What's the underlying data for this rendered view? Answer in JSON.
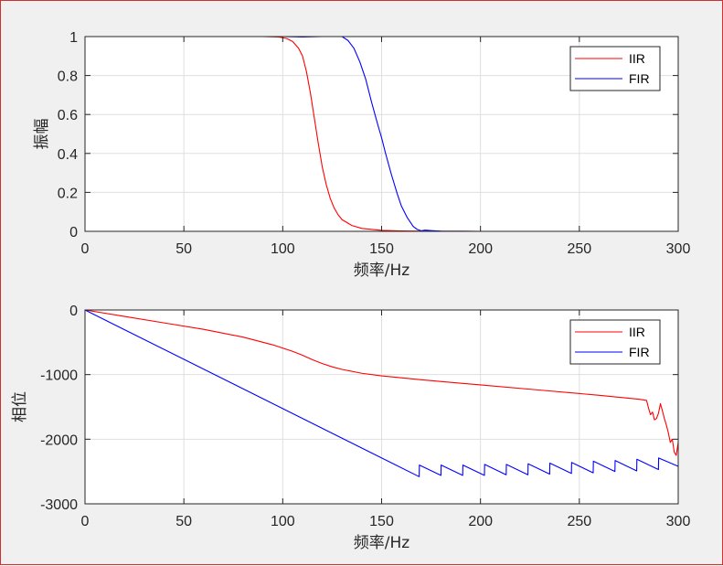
{
  "chart_data": [
    {
      "type": "line",
      "xlabel": "频率/Hz",
      "ylabel": "振幅",
      "xlim": [
        0,
        300
      ],
      "ylim": [
        0,
        1
      ],
      "xticks": [
        "0",
        "50",
        "100",
        "150",
        "200",
        "250",
        "300"
      ],
      "yticks": [
        "0",
        "0.2",
        "0.4",
        "0.6",
        "0.8",
        "1"
      ],
      "grid": true,
      "legend_position": "top-right",
      "series": [
        {
          "name": "IIR",
          "color": "#ff0000",
          "x": [
            0,
            50,
            90,
            98,
            102,
            105,
            108,
            110,
            112,
            114,
            116,
            118,
            120,
            122,
            124,
            126,
            128,
            130,
            135,
            140,
            150,
            160,
            170,
            200,
            300
          ],
          "y": [
            1,
            1,
            1,
            0.998,
            0.99,
            0.975,
            0.94,
            0.9,
            0.82,
            0.71,
            0.58,
            0.45,
            0.33,
            0.24,
            0.17,
            0.12,
            0.085,
            0.06,
            0.03,
            0.015,
            0.005,
            0.002,
            0.001,
            0,
            0
          ]
        },
        {
          "name": "FIR",
          "color": "#0000ff",
          "x": [
            0,
            50,
            100,
            110,
            120,
            125,
            130,
            133,
            136,
            139,
            142,
            145,
            148,
            150,
            152,
            155,
            158,
            160,
            163,
            166,
            168,
            170,
            172,
            175,
            180,
            200,
            250,
            300
          ],
          "y": [
            1,
            1,
            1,
            0.998,
            1.0,
            1.005,
            1.0,
            0.98,
            0.94,
            0.87,
            0.78,
            0.66,
            0.55,
            0.48,
            0.4,
            0.29,
            0.19,
            0.13,
            0.07,
            0.025,
            0.01,
            0.003,
            0.006,
            0.004,
            0.001,
            0,
            0,
            0
          ]
        }
      ]
    },
    {
      "type": "line",
      "xlabel": "频率/Hz",
      "ylabel": "相位",
      "xlim": [
        0,
        300
      ],
      "ylim": [
        -3000,
        0
      ],
      "xticks": [
        "0",
        "50",
        "100",
        "150",
        "200",
        "250",
        "300"
      ],
      "yticks": [
        "-3000",
        "-2000",
        "-1000",
        "0"
      ],
      "grid": true,
      "legend_position": "top-right",
      "series": [
        {
          "name": "IIR",
          "color": "#ff0000",
          "x": [
            0,
            20,
            40,
            60,
            80,
            95,
            105,
            110,
            115,
            120,
            125,
            130,
            140,
            150,
            170,
            200,
            230,
            260,
            280,
            282,
            284,
            285,
            286,
            287,
            288,
            289,
            290,
            291,
            292,
            293,
            294,
            295,
            296,
            297,
            298,
            299,
            300
          ],
          "y": [
            0,
            -100,
            -200,
            -300,
            -420,
            -540,
            -640,
            -700,
            -770,
            -830,
            -880,
            -920,
            -980,
            -1020,
            -1080,
            -1160,
            -1240,
            -1320,
            -1380,
            -1390,
            -1400,
            -1520,
            -1620,
            -1580,
            -1700,
            -1680,
            -1600,
            -1450,
            -1560,
            -1680,
            -1780,
            -1900,
            -2050,
            -2000,
            -2200,
            -2250,
            -2050
          ]
        },
        {
          "name": "FIR",
          "color": "#0000ff",
          "x": [
            0,
            169,
            169.1,
            180,
            180.1,
            191,
            191.1,
            202,
            202.1,
            213,
            213.1,
            224,
            224.1,
            235,
            235.1,
            246,
            246.1,
            257,
            257.1,
            268,
            268.1,
            279,
            279.1,
            290,
            290.1,
            300
          ],
          "y": [
            0,
            -2580,
            -2400,
            -2560,
            -2400,
            -2560,
            -2400,
            -2560,
            -2390,
            -2550,
            -2390,
            -2550,
            -2380,
            -2540,
            -2370,
            -2530,
            -2360,
            -2520,
            -2340,
            -2500,
            -2330,
            -2490,
            -2310,
            -2470,
            -2290,
            -2420
          ]
        }
      ]
    }
  ]
}
